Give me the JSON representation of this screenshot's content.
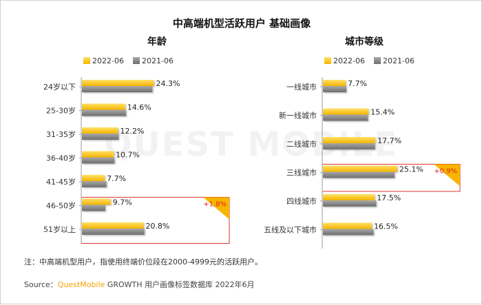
{
  "title": "中高端机型活跃用户 基础画像",
  "legend": [
    {
      "name": "2022-06",
      "color": "#f9c313"
    },
    {
      "name": "2021-06",
      "color": "#8c8c8c"
    }
  ],
  "watermark": "QUEST MOBILE",
  "note": "注：中高端机型用户，指使用终端价位段在2000-4999元的活跃用户。",
  "source": {
    "prefix": "Source：",
    "brand": "QuestMobile",
    "rest": " GROWTH 用户画像标签数据库 2022年6月"
  },
  "chart_data": [
    {
      "type": "bar",
      "orientation": "horizontal",
      "title": "年龄",
      "categories": [
        "24岁以下",
        "25-30岁",
        "31-35岁",
        "36-40岁",
        "41-45岁",
        "46-50岁",
        "51岁以上"
      ],
      "series": [
        {
          "name": "2022-06",
          "values": [
            24.3,
            14.6,
            12.2,
            10.7,
            7.7,
            9.7,
            20.8
          ],
          "labels": [
            "24.3%",
            "14.6%",
            "12.2%",
            "10.7%",
            "7.7%",
            "9.7%",
            "20.8%"
          ]
        },
        {
          "name": "2021-06",
          "values": [
            23.8,
            14.9,
            12.4,
            11.0,
            8.3,
            7.9,
            21.1
          ]
        }
      ],
      "highlight": {
        "categories": [
          "46-50岁",
          "51岁以上"
        ],
        "label": "+1.8%"
      },
      "xlim": [
        0,
        30
      ]
    },
    {
      "type": "bar",
      "orientation": "horizontal",
      "title": "城市等级",
      "categories": [
        "一线城市",
        "新一线城市",
        "二线城市",
        "三线城市",
        "四线城市",
        "五线及以下城市"
      ],
      "series": [
        {
          "name": "2022-06",
          "values": [
            7.7,
            15.4,
            17.7,
            25.1,
            17.5,
            16.5
          ],
          "labels": [
            "7.7%",
            "15.4%",
            "17.7%",
            "25.1%",
            "17.5%",
            "16.5%"
          ]
        },
        {
          "name": "2021-06",
          "values": [
            7.9,
            15.2,
            17.6,
            24.2,
            18.0,
            17.1
          ]
        }
      ],
      "highlight": {
        "categories": [
          "三线城市"
        ],
        "label": "+0.9%"
      },
      "xlim": [
        0,
        30
      ]
    }
  ]
}
